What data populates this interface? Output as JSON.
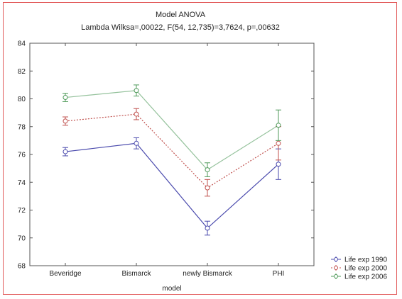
{
  "chart_data": {
    "type": "line",
    "title": "Model ANOVA",
    "subtitle": "Lambda Wilksa=,00022, F(54, 12,735)=3,7624, p=,00632",
    "xlabel": "model",
    "ylabel": "",
    "categories": [
      "Beveridge",
      "Bismarck",
      "newly Bismarck",
      "PHI"
    ],
    "ylim": [
      68,
      84
    ],
    "yticks": [
      "68",
      "70",
      "72",
      "74",
      "76",
      "78",
      "80",
      "82",
      "84"
    ],
    "grid": false,
    "legend_position": "bottom-right",
    "series": [
      {
        "name": "Life exp 1990",
        "color": "#4a4aad",
        "line_style": "solid",
        "marker": "circle",
        "values": [
          76.2,
          76.8,
          70.7,
          75.3
        ],
        "err": [
          0.3,
          0.4,
          0.5,
          1.1
        ]
      },
      {
        "name": "Life exp 2000",
        "color": "#c0504d",
        "line_style": "dotted",
        "marker": "circle",
        "values": [
          78.4,
          78.9,
          73.6,
          76.8
        ],
        "err": [
          0.3,
          0.4,
          0.6,
          1.2
        ]
      },
      {
        "name": "Life exp 2006",
        "color": "#4f9a5a",
        "line_style": "solid",
        "marker": "circle",
        "values": [
          80.1,
          80.6,
          74.9,
          78.1
        ],
        "err": [
          0.3,
          0.4,
          0.5,
          1.1
        ]
      }
    ]
  }
}
